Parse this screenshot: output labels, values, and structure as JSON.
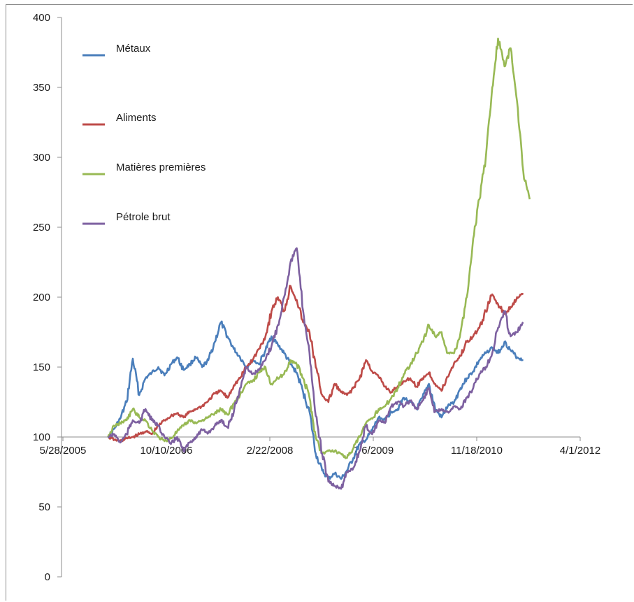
{
  "chart_data": {
    "type": "line",
    "title": "",
    "xlabel": "",
    "ylabel": "",
    "ylim": [
      0,
      400
    ],
    "xlim": [
      "2005-05-28",
      "2012-04-01"
    ],
    "yticks": [
      0,
      50,
      100,
      150,
      200,
      250,
      300,
      350,
      400
    ],
    "xticks": [
      "2005-05-28",
      "2006-10-10",
      "2008-02-22",
      "2009-07-06",
      "2010-11-18",
      "2012-04-01"
    ],
    "xtick_labels": [
      "5/28/2005",
      "10/10/2006",
      "2/22/2008",
      "7/6/2009",
      "11/18/2010",
      "4/1/2012"
    ],
    "x_axis_crosses_y_at": 100,
    "grid": false,
    "legend": "top-left",
    "series": [
      {
        "name": "Métaux",
        "color": "#4a7ebb",
        "points": [
          [
            "2006-01-01",
            100
          ],
          [
            "2006-02-01",
            106
          ],
          [
            "2006-03-01",
            113
          ],
          [
            "2006-04-01",
            125
          ],
          [
            "2006-05-01",
            156
          ],
          [
            "2006-06-01",
            130
          ],
          [
            "2006-07-01",
            142
          ],
          [
            "2006-08-01",
            146
          ],
          [
            "2006-09-01",
            150
          ],
          [
            "2006-10-01",
            144
          ],
          [
            "2006-11-01",
            152
          ],
          [
            "2006-12-01",
            157
          ],
          [
            "2007-01-01",
            148
          ],
          [
            "2007-02-01",
            152
          ],
          [
            "2007-03-01",
            157
          ],
          [
            "2007-04-01",
            150
          ],
          [
            "2007-05-01",
            155
          ],
          [
            "2007-06-01",
            168
          ],
          [
            "2007-07-01",
            182
          ],
          [
            "2007-08-01",
            172
          ],
          [
            "2007-09-01",
            163
          ],
          [
            "2007-10-01",
            157
          ],
          [
            "2007-11-01",
            150
          ],
          [
            "2007-12-01",
            155
          ],
          [
            "2008-01-01",
            152
          ],
          [
            "2008-02-01",
            162
          ],
          [
            "2008-03-01",
            172
          ],
          [
            "2008-04-01",
            166
          ],
          [
            "2008-05-01",
            160
          ],
          [
            "2008-06-01",
            152
          ],
          [
            "2008-07-01",
            146
          ],
          [
            "2008-08-01",
            132
          ],
          [
            "2008-09-01",
            118
          ],
          [
            "2008-10-01",
            88
          ],
          [
            "2008-11-01",
            76
          ],
          [
            "2008-12-01",
            70
          ],
          [
            "2009-01-01",
            74
          ],
          [
            "2009-02-01",
            70
          ],
          [
            "2009-03-01",
            76
          ],
          [
            "2009-04-01",
            85
          ],
          [
            "2009-05-01",
            95
          ],
          [
            "2009-06-01",
            98
          ],
          [
            "2009-07-01",
            105
          ],
          [
            "2009-08-01",
            114
          ],
          [
            "2009-09-01",
            112
          ],
          [
            "2009-10-01",
            118
          ],
          [
            "2009-11-01",
            120
          ],
          [
            "2009-12-01",
            128
          ],
          [
            "2010-01-01",
            125
          ],
          [
            "2010-02-01",
            120
          ],
          [
            "2010-03-01",
            128
          ],
          [
            "2010-04-01",
            138
          ],
          [
            "2010-05-01",
            120
          ],
          [
            "2010-06-01",
            114
          ],
          [
            "2010-07-01",
            122
          ],
          [
            "2010-08-01",
            125
          ],
          [
            "2010-09-01",
            135
          ],
          [
            "2010-10-01",
            142
          ],
          [
            "2010-11-01",
            147
          ],
          [
            "2010-12-01",
            155
          ],
          [
            "2011-01-01",
            160
          ],
          [
            "2011-02-01",
            164
          ],
          [
            "2011-03-01",
            160
          ],
          [
            "2011-04-01",
            168
          ],
          [
            "2011-05-01",
            162
          ],
          [
            "2011-06-01",
            157
          ],
          [
            "2011-07-01",
            155
          ]
        ]
      },
      {
        "name": "Aliments",
        "color": "#be4b48",
        "points": [
          [
            "2006-01-01",
            100
          ],
          [
            "2006-02-01",
            98
          ],
          [
            "2006-03-01",
            97
          ],
          [
            "2006-04-01",
            99
          ],
          [
            "2006-05-01",
            100
          ],
          [
            "2006-06-01",
            102
          ],
          [
            "2006-07-01",
            104
          ],
          [
            "2006-08-01",
            102
          ],
          [
            "2006-09-01",
            108
          ],
          [
            "2006-10-01",
            112
          ],
          [
            "2006-11-01",
            115
          ],
          [
            "2006-12-01",
            117
          ],
          [
            "2007-01-01",
            114
          ],
          [
            "2007-02-01",
            118
          ],
          [
            "2007-03-01",
            120
          ],
          [
            "2007-04-01",
            122
          ],
          [
            "2007-05-01",
            126
          ],
          [
            "2007-06-01",
            131
          ],
          [
            "2007-07-01",
            133
          ],
          [
            "2007-08-01",
            128
          ],
          [
            "2007-09-01",
            137
          ],
          [
            "2007-10-01",
            142
          ],
          [
            "2007-11-01",
            150
          ],
          [
            "2007-12-01",
            155
          ],
          [
            "2008-01-01",
            163
          ],
          [
            "2008-02-01",
            172
          ],
          [
            "2008-03-01",
            190
          ],
          [
            "2008-04-01",
            200
          ],
          [
            "2008-05-01",
            190
          ],
          [
            "2008-06-01",
            208
          ],
          [
            "2008-07-01",
            198
          ],
          [
            "2008-08-01",
            182
          ],
          [
            "2008-09-01",
            175
          ],
          [
            "2008-10-01",
            150
          ],
          [
            "2008-11-01",
            130
          ],
          [
            "2008-12-01",
            125
          ],
          [
            "2009-01-01",
            138
          ],
          [
            "2009-02-01",
            132
          ],
          [
            "2009-03-01",
            130
          ],
          [
            "2009-04-01",
            135
          ],
          [
            "2009-05-01",
            142
          ],
          [
            "2009-06-01",
            155
          ],
          [
            "2009-07-01",
            147
          ],
          [
            "2009-08-01",
            143
          ],
          [
            "2009-09-01",
            136
          ],
          [
            "2009-10-01",
            132
          ],
          [
            "2009-11-01",
            136
          ],
          [
            "2009-12-01",
            140
          ],
          [
            "2010-01-01",
            142
          ],
          [
            "2010-02-01",
            136
          ],
          [
            "2010-03-01",
            142
          ],
          [
            "2010-04-01",
            146
          ],
          [
            "2010-05-01",
            138
          ],
          [
            "2010-06-01",
            133
          ],
          [
            "2010-07-01",
            143
          ],
          [
            "2010-08-01",
            153
          ],
          [
            "2010-09-01",
            158
          ],
          [
            "2010-10-01",
            168
          ],
          [
            "2010-11-01",
            172
          ],
          [
            "2010-12-01",
            178
          ],
          [
            "2011-01-01",
            190
          ],
          [
            "2011-02-01",
            202
          ],
          [
            "2011-03-01",
            195
          ],
          [
            "2011-04-01",
            188
          ],
          [
            "2011-05-01",
            193
          ],
          [
            "2011-06-01",
            200
          ],
          [
            "2011-07-01",
            202
          ]
        ]
      },
      {
        "name": "Matières premières",
        "color": "#98b954",
        "points": [
          [
            "2006-01-01",
            100
          ],
          [
            "2006-02-01",
            108
          ],
          [
            "2006-03-01",
            110
          ],
          [
            "2006-04-01",
            112
          ],
          [
            "2006-05-01",
            120
          ],
          [
            "2006-06-01",
            114
          ],
          [
            "2006-07-01",
            112
          ],
          [
            "2006-08-01",
            105
          ],
          [
            "2006-09-01",
            100
          ],
          [
            "2006-10-01",
            97
          ],
          [
            "2006-11-01",
            99
          ],
          [
            "2006-12-01",
            104
          ],
          [
            "2007-01-01",
            108
          ],
          [
            "2007-02-01",
            112
          ],
          [
            "2007-03-01",
            110
          ],
          [
            "2007-04-01",
            112
          ],
          [
            "2007-05-01",
            114
          ],
          [
            "2007-06-01",
            117
          ],
          [
            "2007-07-01",
            120
          ],
          [
            "2007-08-01",
            116
          ],
          [
            "2007-09-01",
            124
          ],
          [
            "2007-10-01",
            130
          ],
          [
            "2007-11-01",
            138
          ],
          [
            "2007-12-01",
            140
          ],
          [
            "2008-01-01",
            146
          ],
          [
            "2008-02-01",
            150
          ],
          [
            "2008-03-01",
            138
          ],
          [
            "2008-04-01",
            142
          ],
          [
            "2008-05-01",
            145
          ],
          [
            "2008-06-01",
            155
          ],
          [
            "2008-07-01",
            152
          ],
          [
            "2008-08-01",
            142
          ],
          [
            "2008-09-01",
            128
          ],
          [
            "2008-10-01",
            100
          ],
          [
            "2008-11-01",
            88
          ],
          [
            "2008-12-01",
            90
          ],
          [
            "2009-01-01",
            90
          ],
          [
            "2009-02-01",
            88
          ],
          [
            "2009-03-01",
            85
          ],
          [
            "2009-04-01",
            92
          ],
          [
            "2009-05-01",
            100
          ],
          [
            "2009-06-01",
            110
          ],
          [
            "2009-07-01",
            113
          ],
          [
            "2009-08-01",
            120
          ],
          [
            "2009-09-01",
            122
          ],
          [
            "2009-10-01",
            128
          ],
          [
            "2009-11-01",
            135
          ],
          [
            "2009-12-01",
            145
          ],
          [
            "2010-01-01",
            152
          ],
          [
            "2010-02-01",
            160
          ],
          [
            "2010-03-01",
            168
          ],
          [
            "2010-04-01",
            180
          ],
          [
            "2010-05-01",
            172
          ],
          [
            "2010-06-01",
            175
          ],
          [
            "2010-07-01",
            160
          ],
          [
            "2010-08-01",
            160
          ],
          [
            "2010-09-01",
            175
          ],
          [
            "2010-10-01",
            200
          ],
          [
            "2010-11-01",
            242
          ],
          [
            "2010-12-01",
            270
          ],
          [
            "2011-01-01",
            300
          ],
          [
            "2011-02-01",
            350
          ],
          [
            "2011-03-01",
            385
          ],
          [
            "2011-04-01",
            365
          ],
          [
            "2011-05-01",
            378
          ],
          [
            "2011-06-01",
            340
          ],
          [
            "2011-07-01",
            290
          ],
          [
            "2011-08-01",
            270
          ]
        ]
      },
      {
        "name": "Pétrole brut",
        "color": "#7d60a0",
        "points": [
          [
            "2006-01-01",
            100
          ],
          [
            "2006-02-01",
            102
          ],
          [
            "2006-03-01",
            96
          ],
          [
            "2006-04-01",
            102
          ],
          [
            "2006-05-01",
            112
          ],
          [
            "2006-06-01",
            110
          ],
          [
            "2006-07-01",
            120
          ],
          [
            "2006-08-01",
            112
          ],
          [
            "2006-09-01",
            108
          ],
          [
            "2006-10-01",
            100
          ],
          [
            "2006-11-01",
            95
          ],
          [
            "2006-12-01",
            100
          ],
          [
            "2007-01-01",
            90
          ],
          [
            "2007-02-01",
            96
          ],
          [
            "2007-03-01",
            100
          ],
          [
            "2007-04-01",
            105
          ],
          [
            "2007-05-01",
            103
          ],
          [
            "2007-06-01",
            108
          ],
          [
            "2007-07-01",
            112
          ],
          [
            "2007-08-01",
            107
          ],
          [
            "2007-09-01",
            118
          ],
          [
            "2007-10-01",
            135
          ],
          [
            "2007-11-01",
            150
          ],
          [
            "2007-12-01",
            145
          ],
          [
            "2008-01-01",
            148
          ],
          [
            "2008-02-01",
            155
          ],
          [
            "2008-03-01",
            165
          ],
          [
            "2008-04-01",
            180
          ],
          [
            "2008-05-01",
            200
          ],
          [
            "2008-06-01",
            225
          ],
          [
            "2008-07-01",
            235
          ],
          [
            "2008-08-01",
            190
          ],
          [
            "2008-09-01",
            160
          ],
          [
            "2008-10-01",
            115
          ],
          [
            "2008-11-01",
            88
          ],
          [
            "2008-12-01",
            68
          ],
          [
            "2009-01-01",
            65
          ],
          [
            "2009-02-01",
            63
          ],
          [
            "2009-03-01",
            75
          ],
          [
            "2009-04-01",
            78
          ],
          [
            "2009-05-01",
            90
          ],
          [
            "2009-06-01",
            108
          ],
          [
            "2009-07-01",
            102
          ],
          [
            "2009-08-01",
            112
          ],
          [
            "2009-09-01",
            110
          ],
          [
            "2009-10-01",
            122
          ],
          [
            "2009-11-01",
            125
          ],
          [
            "2009-12-01",
            122
          ],
          [
            "2010-01-01",
            126
          ],
          [
            "2010-02-01",
            120
          ],
          [
            "2010-03-01",
            126
          ],
          [
            "2010-04-01",
            135
          ],
          [
            "2010-05-01",
            118
          ],
          [
            "2010-06-01",
            120
          ],
          [
            "2010-07-01",
            118
          ],
          [
            "2010-08-01",
            122
          ],
          [
            "2010-09-01",
            120
          ],
          [
            "2010-10-01",
            128
          ],
          [
            "2010-11-01",
            135
          ],
          [
            "2010-12-01",
            145
          ],
          [
            "2011-01-01",
            150
          ],
          [
            "2011-02-01",
            160
          ],
          [
            "2011-03-01",
            178
          ],
          [
            "2011-04-01",
            190
          ],
          [
            "2011-05-01",
            172
          ],
          [
            "2011-06-01",
            175
          ],
          [
            "2011-07-01",
            182
          ]
        ]
      }
    ]
  }
}
